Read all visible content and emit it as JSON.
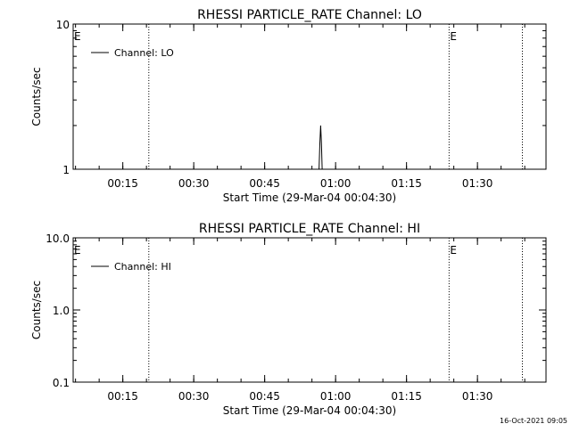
{
  "chart_data": [
    {
      "type": "line",
      "title": "RHESSI PARTICLE_RATE Channel: LO",
      "xlabel": "Start Time (29-Mar-04 00:04:30)",
      "ylabel": "Counts/sec",
      "yscale": "log",
      "ylim": [
        1,
        10
      ],
      "yticks": [
        1,
        10
      ],
      "ytick_labels": [
        "1",
        "10"
      ],
      "xlim": [
        "00:04:30",
        "01:44:30"
      ],
      "xticks": [
        "00:15",
        "00:30",
        "00:45",
        "01:00",
        "01:15",
        "01:30"
      ],
      "legend": "top-left",
      "series": [
        {
          "name": "Channel: LO",
          "x": [
            "00:56:30",
            "00:56:40",
            "00:56:50",
            "00:57:00",
            "00:57:10",
            "00:57:20"
          ],
          "y": [
            1.0,
            1.5,
            2.0,
            1.5,
            1.0,
            1.0
          ]
        }
      ],
      "vlines": [
        "00:20:30",
        "01:24:00",
        "01:39:30"
      ],
      "markers": [
        {
          "x": "00:04:30",
          "label": "E"
        },
        {
          "x": "01:24:00",
          "label": "E"
        }
      ]
    },
    {
      "type": "line",
      "title": "RHESSI PARTICLE_RATE Channel: HI",
      "xlabel": "Start Time (29-Mar-04 00:04:30)",
      "ylabel": "Counts/sec",
      "yscale": "log",
      "ylim": [
        0.1,
        10
      ],
      "yticks": [
        0.1,
        1,
        10
      ],
      "ytick_labels": [
        "0.1",
        "1.0",
        "10.0"
      ],
      "xlim": [
        "00:04:30",
        "01:44:30"
      ],
      "xticks": [
        "00:15",
        "00:30",
        "00:45",
        "01:00",
        "01:15",
        "01:30"
      ],
      "legend": "top-left",
      "series": [
        {
          "name": "Channel: HI",
          "x": [],
          "y": []
        }
      ],
      "vlines": [
        "00:20:30",
        "01:24:00",
        "01:39:30"
      ],
      "markers": [
        {
          "x": "00:04:30",
          "label": "E"
        },
        {
          "x": "01:24:00",
          "label": "E"
        }
      ]
    }
  ],
  "footer": {
    "timestamp": "16-Oct-2021 09:05"
  }
}
